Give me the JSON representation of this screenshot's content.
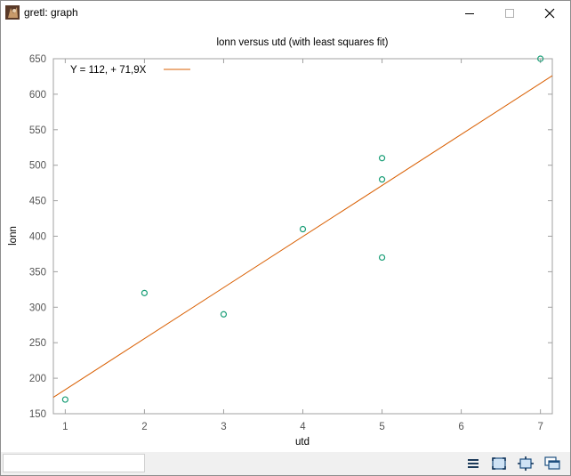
{
  "window": {
    "title": "gretl: graph",
    "icons": {
      "app": "gretl-app-icon",
      "minimize": "minimize-icon",
      "maximize": "maximize-icon",
      "close": "close-icon"
    }
  },
  "chart_data": {
    "type": "scatter",
    "title": "lonn versus utd (with least squares fit)",
    "xlabel": "utd",
    "ylabel": "lonn",
    "xlim": [
      0.85,
      7.15
    ],
    "ylim": [
      150,
      650
    ],
    "x_ticks": [
      1,
      2,
      3,
      4,
      5,
      6,
      7
    ],
    "y_ticks": [
      150,
      200,
      250,
      300,
      350,
      400,
      450,
      500,
      550,
      600,
      650
    ],
    "grid": false,
    "legend_position": "top-left",
    "series": [
      {
        "kind": "points",
        "marker": "open-circle",
        "color": "#1a9e77",
        "points": [
          {
            "x": 1,
            "y": 170
          },
          {
            "x": 2,
            "y": 320
          },
          {
            "x": 3,
            "y": 290
          },
          {
            "x": 4,
            "y": 410
          },
          {
            "x": 5,
            "y": 370
          },
          {
            "x": 5,
            "y": 480
          },
          {
            "x": 5,
            "y": 510
          },
          {
            "x": 7,
            "y": 650
          }
        ]
      },
      {
        "kind": "line",
        "name": "Y = 112, + 71,9X",
        "color": "#d95f02",
        "intercept": 112,
        "slope": 71.9
      }
    ]
  },
  "statusbar": {
    "status_text": "",
    "tools": [
      {
        "name": "menu-icon"
      },
      {
        "name": "zoom-icon"
      },
      {
        "name": "fit-icon"
      },
      {
        "name": "windows-icon"
      }
    ]
  }
}
